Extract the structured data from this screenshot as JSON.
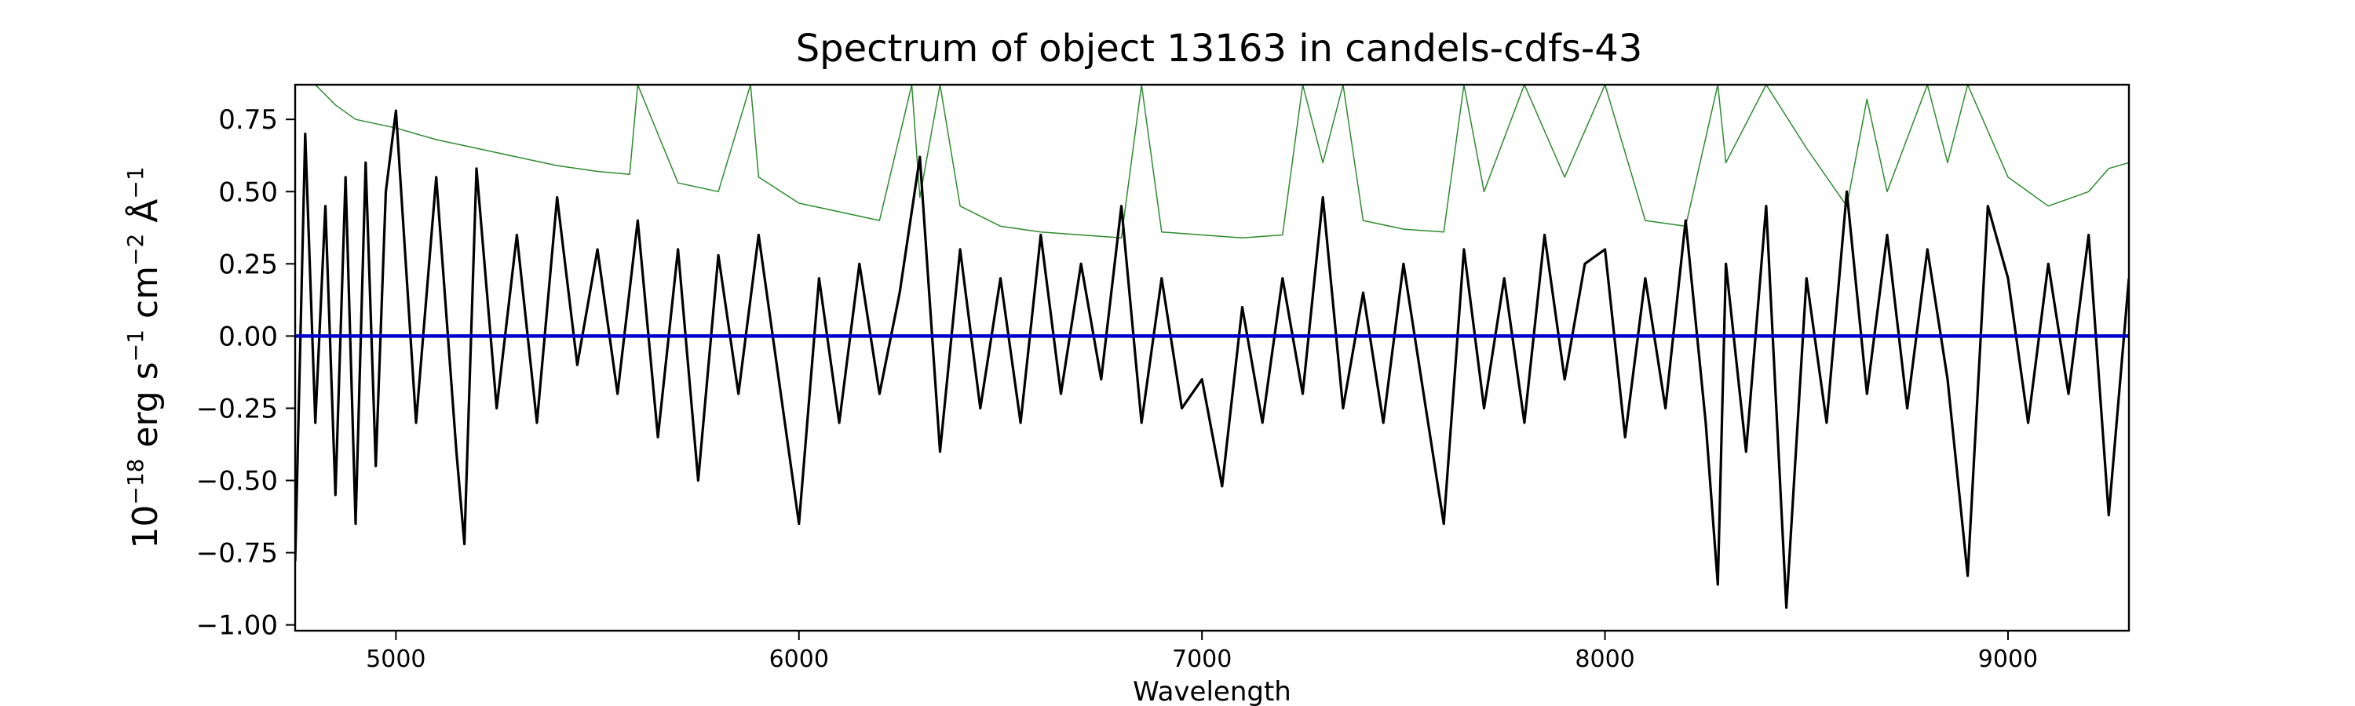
{
  "chart_data": {
    "type": "line",
    "title": "Spectrum of object 13163 in candels-cdfs-43",
    "xlabel": "Wavelength",
    "ylabel": "10$^{-18}$ erg s$^{-1}$ cm$^{-2}$ Å$^{-1}$",
    "ylabel_parts": {
      "base": "10",
      "exp1": "−18",
      "erg": " erg s",
      "exp2": "−1",
      "cm": " cm",
      "exp3": "−2",
      "ang": " Å",
      "exp4": "−1"
    },
    "xlim": [
      4750,
      9300
    ],
    "ylim": [
      -1.02,
      0.87
    ],
    "x_ticks": [
      5000,
      6000,
      7000,
      8000,
      9000
    ],
    "x_tick_labels": [
      "5000",
      "6000",
      "7000",
      "8000",
      "9000"
    ],
    "y_ticks": [
      0.75,
      0.5,
      0.25,
      0.0,
      -0.25,
      -0.5,
      -0.75,
      -1.0
    ],
    "y_tick_labels": [
      "0.75",
      "0.50",
      "0.25",
      "0.00",
      "−0.25",
      "−0.50",
      "−0.75",
      "−1.00"
    ],
    "grid": false,
    "series": [
      {
        "color": "#000000",
        "style": "solid",
        "x": [
          4750,
          4775,
          4800,
          4825,
          4850,
          4875,
          4900,
          4925,
          4950,
          4975,
          5000,
          5050,
          5100,
          5150,
          5170,
          5200,
          5250,
          5300,
          5350,
          5400,
          5450,
          5500,
          5550,
          5600,
          5650,
          5700,
          5750,
          5800,
          5850,
          5900,
          5950,
          6000,
          6050,
          6100,
          6150,
          6200,
          6250,
          6300,
          6350,
          6400,
          6450,
          6500,
          6550,
          6600,
          6650,
          6700,
          6750,
          6800,
          6850,
          6900,
          6950,
          7000,
          7050,
          7100,
          7150,
          7200,
          7250,
          7300,
          7350,
          7400,
          7450,
          7500,
          7550,
          7600,
          7650,
          7700,
          7750,
          7800,
          7850,
          7900,
          7950,
          8000,
          8050,
          8100,
          8150,
          8200,
          8250,
          8280,
          8300,
          8350,
          8400,
          8450,
          8500,
          8550,
          8600,
          8650,
          8700,
          8750,
          8800,
          8850,
          8900,
          8950,
          9000,
          9050,
          9100,
          9150,
          9200,
          9250,
          9300
        ],
        "y": [
          -0.78,
          0.7,
          -0.3,
          0.45,
          -0.55,
          0.55,
          -0.65,
          0.6,
          -0.45,
          0.5,
          0.78,
          -0.3,
          0.55,
          -0.4,
          -0.72,
          0.58,
          -0.25,
          0.35,
          -0.3,
          0.48,
          -0.1,
          0.3,
          -0.2,
          0.4,
          -0.35,
          0.3,
          -0.5,
          0.28,
          -0.2,
          0.35,
          -0.15,
          -0.65,
          0.2,
          -0.3,
          0.25,
          -0.2,
          0.15,
          0.62,
          -0.4,
          0.3,
          -0.25,
          0.2,
          -0.3,
          0.35,
          -0.2,
          0.25,
          -0.15,
          0.45,
          -0.3,
          0.2,
          -0.25,
          -0.15,
          -0.52,
          0.1,
          -0.3,
          0.2,
          -0.2,
          0.48,
          -0.25,
          0.15,
          -0.3,
          0.25,
          -0.2,
          -0.65,
          0.3,
          -0.25,
          0.2,
          -0.3,
          0.35,
          -0.15,
          0.25,
          0.3,
          -0.35,
          0.2,
          -0.25,
          0.4,
          -0.3,
          -0.86,
          0.25,
          -0.4,
          0.45,
          -0.94,
          0.2,
          -0.3,
          0.5,
          -0.2,
          0.35,
          -0.25,
          0.3,
          -0.15,
          -0.83,
          0.45,
          0.2,
          -0.3,
          0.25,
          -0.2,
          0.35,
          -0.62,
          0.2
        ]
      },
      {
        "color": "#0000cc",
        "style": "solid",
        "x": [
          4750,
          9300
        ],
        "y": [
          0.0,
          0.0
        ]
      },
      {
        "color": "#2e8b2e",
        "style": "solid",
        "x": [
          4750,
          4800,
          4850,
          4900,
          5000,
          5100,
          5200,
          5300,
          5400,
          5500,
          5580,
          5600,
          5700,
          5800,
          5880,
          5900,
          6000,
          6100,
          6200,
          6280,
          6300,
          6350,
          6400,
          6500,
          6600,
          6700,
          6800,
          6850,
          6900,
          7000,
          7100,
          7200,
          7250,
          7300,
          7350,
          7400,
          7500,
          7600,
          7650,
          7700,
          7800,
          7900,
          8000,
          8100,
          8200,
          8280,
          8300,
          8400,
          8500,
          8600,
          8650,
          8700,
          8800,
          8850,
          8900,
          9000,
          9100,
          9200,
          9250,
          9300
        ],
        "y": [
          0.87,
          0.87,
          0.8,
          0.75,
          0.72,
          0.68,
          0.65,
          0.62,
          0.59,
          0.57,
          0.56,
          0.87,
          0.53,
          0.5,
          0.87,
          0.55,
          0.46,
          0.43,
          0.4,
          0.87,
          0.48,
          0.87,
          0.45,
          0.38,
          0.36,
          0.35,
          0.34,
          0.87,
          0.36,
          0.35,
          0.34,
          0.35,
          0.87,
          0.6,
          0.87,
          0.4,
          0.37,
          0.36,
          0.87,
          0.5,
          0.87,
          0.55,
          0.87,
          0.4,
          0.38,
          0.87,
          0.6,
          0.87,
          0.65,
          0.45,
          0.82,
          0.5,
          0.87,
          0.6,
          0.87,
          0.55,
          0.45,
          0.5,
          0.58,
          0.6
        ]
      }
    ]
  }
}
